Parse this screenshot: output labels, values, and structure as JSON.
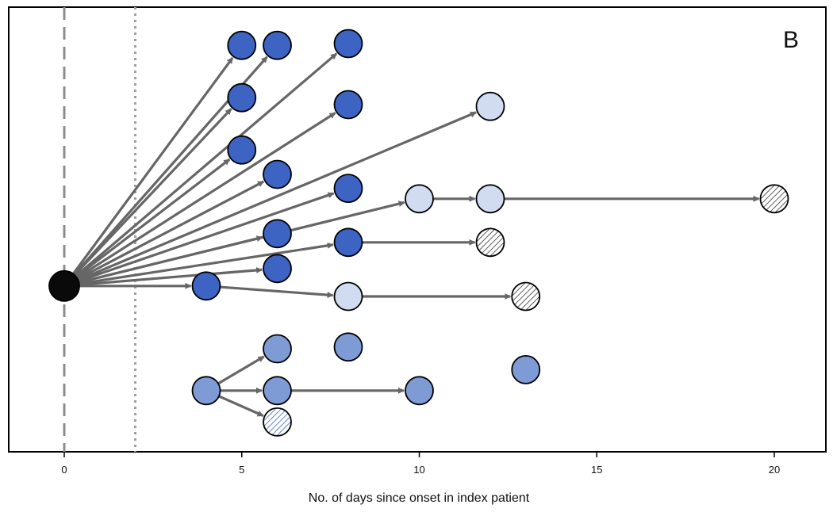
{
  "chart_data": {
    "type": "scatter",
    "title": "",
    "panel_label": "B",
    "xlabel": "No. of days since onset in index patient",
    "ylabel": "",
    "xlim": [
      -1.5,
      21.5
    ],
    "xticks": [
      0,
      5,
      10,
      15,
      20
    ],
    "grid": false,
    "legend": "none",
    "reference_lines": [
      {
        "x": 0,
        "style": "dashed",
        "color": "#8c8c8c"
      },
      {
        "x": 2,
        "style": "dotted",
        "color": "#a0a0a0"
      }
    ],
    "colors": {
      "index": "#0a0a0a",
      "dark_blue": "#3d63c3",
      "light_blue": "#d1dcf0",
      "mid_blue": "#7f9bd6",
      "hatched_gray": "#d9d9d9",
      "hatched_blue": "#ffffff",
      "arrow": "#666666"
    },
    "nodes": [
      {
        "id": "n0",
        "x": 0,
        "row": 7.2,
        "color": "index"
      },
      {
        "id": "n1",
        "x": 5,
        "row": 0.3,
        "color": "dark_blue"
      },
      {
        "id": "n2",
        "x": 6,
        "row": 0.3,
        "color": "dark_blue"
      },
      {
        "id": "n3",
        "x": 8,
        "row": 0.25,
        "color": "dark_blue"
      },
      {
        "id": "n4",
        "x": 5,
        "row": 1.8,
        "color": "dark_blue"
      },
      {
        "id": "n5",
        "x": 8,
        "row": 2.0,
        "color": "dark_blue"
      },
      {
        "id": "n6",
        "x": 12,
        "row": 2.05,
        "color": "light_blue"
      },
      {
        "id": "n7",
        "x": 5,
        "row": 3.3,
        "color": "dark_blue"
      },
      {
        "id": "n8",
        "x": 6,
        "row": 4.0,
        "color": "dark_blue"
      },
      {
        "id": "n9",
        "x": 8,
        "row": 4.4,
        "color": "dark_blue"
      },
      {
        "id": "n10",
        "x": 10,
        "row": 4.7,
        "color": "light_blue"
      },
      {
        "id": "n11",
        "x": 12,
        "row": 4.7,
        "color": "light_blue"
      },
      {
        "id": "n12",
        "x": 20,
        "row": 4.7,
        "color": "hatched_gray"
      },
      {
        "id": "n13",
        "x": 6,
        "row": 5.7,
        "color": "dark_blue"
      },
      {
        "id": "n14",
        "x": 8,
        "row": 5.95,
        "color": "dark_blue"
      },
      {
        "id": "n15",
        "x": 12,
        "row": 5.95,
        "color": "hatched_gray"
      },
      {
        "id": "n16",
        "x": 6,
        "row": 6.7,
        "color": "dark_blue"
      },
      {
        "id": "n17",
        "x": 4,
        "row": 7.2,
        "color": "dark_blue"
      },
      {
        "id": "n18",
        "x": 8,
        "row": 7.5,
        "color": "light_blue"
      },
      {
        "id": "n19",
        "x": 13,
        "row": 7.5,
        "color": "hatched_gray"
      },
      {
        "id": "n20",
        "x": 6,
        "row": 9.0,
        "color": "mid_blue"
      },
      {
        "id": "n21",
        "x": 8,
        "row": 8.95,
        "color": "mid_blue"
      },
      {
        "id": "n22",
        "x": 13,
        "row": 9.6,
        "color": "mid_blue"
      },
      {
        "id": "n23",
        "x": 4,
        "row": 10.2,
        "color": "mid_blue"
      },
      {
        "id": "n24",
        "x": 6,
        "row": 10.2,
        "color": "mid_blue"
      },
      {
        "id": "n25",
        "x": 10,
        "row": 10.2,
        "color": "mid_blue"
      },
      {
        "id": "n26",
        "x": 6,
        "row": 11.1,
        "color": "hatched_blue"
      }
    ],
    "edges": [
      [
        "n0",
        "n1"
      ],
      [
        "n0",
        "n2"
      ],
      [
        "n0",
        "n3"
      ],
      [
        "n0",
        "n4"
      ],
      [
        "n0",
        "n5"
      ],
      [
        "n0",
        "n6"
      ],
      [
        "n0",
        "n7"
      ],
      [
        "n0",
        "n8"
      ],
      [
        "n0",
        "n9"
      ],
      [
        "n0",
        "n10"
      ],
      [
        "n0",
        "n13"
      ],
      [
        "n0",
        "n14"
      ],
      [
        "n0",
        "n16"
      ],
      [
        "n0",
        "n17"
      ],
      [
        "n10",
        "n11"
      ],
      [
        "n11",
        "n12"
      ],
      [
        "n14",
        "n15"
      ],
      [
        "n17",
        "n18"
      ],
      [
        "n18",
        "n19"
      ],
      [
        "n23",
        "n20"
      ],
      [
        "n23",
        "n24"
      ],
      [
        "n23",
        "n26"
      ],
      [
        "n24",
        "n25"
      ]
    ]
  }
}
